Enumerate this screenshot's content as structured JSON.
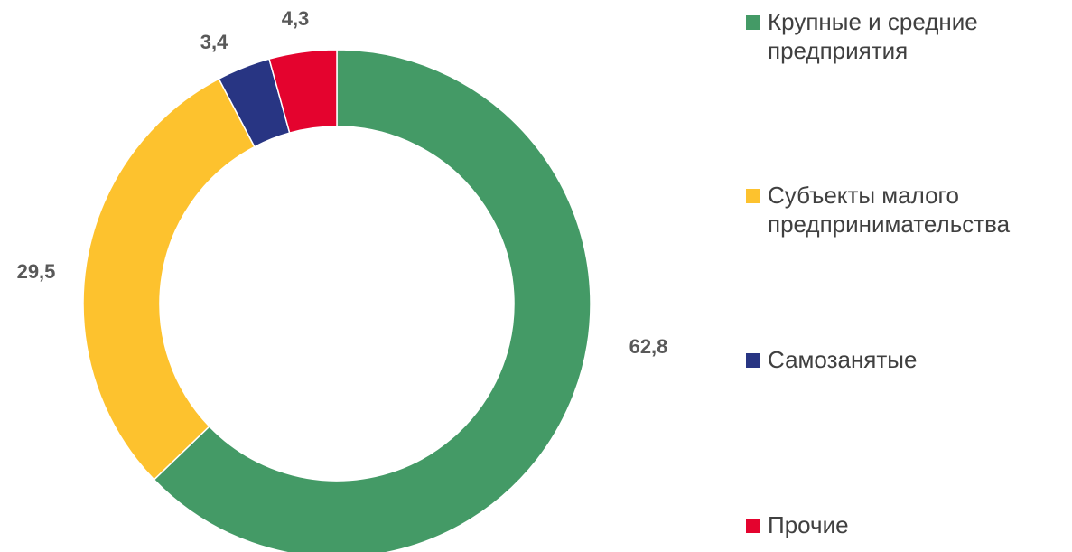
{
  "chart_data": {
    "type": "donut",
    "categories": [
      "Крупные и средние предприятия",
      "Субъекты малого предпринимательства",
      "Самозанятые",
      "Прочие"
    ],
    "values": [
      62.8,
      29.5,
      3.4,
      4.3
    ],
    "value_labels": [
      "62,8",
      "29,5",
      "3,4",
      "4,3"
    ],
    "colors": [
      "#449a66",
      "#fdc22e",
      "#283583",
      "#e4032e"
    ],
    "legend": "right"
  }
}
